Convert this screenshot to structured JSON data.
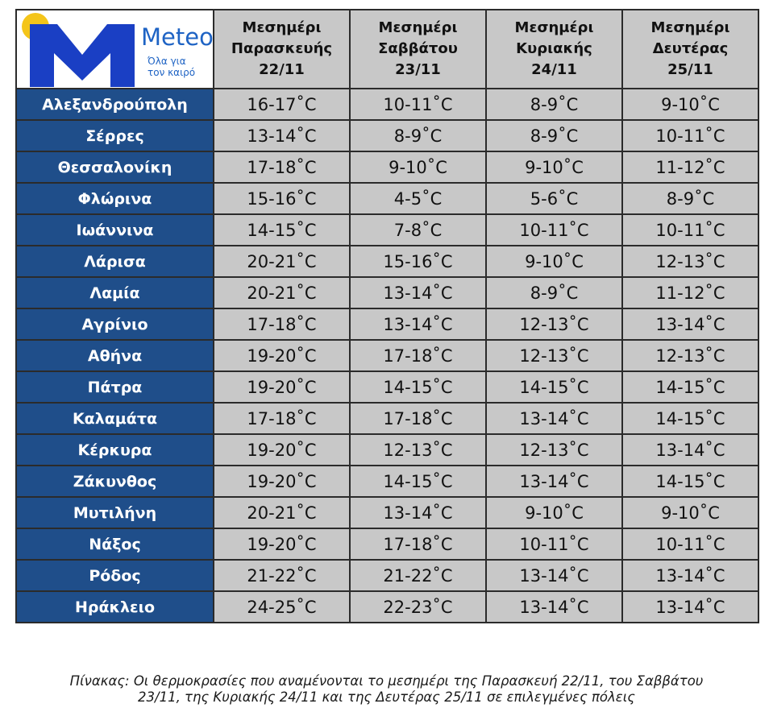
{
  "logo": {
    "brand": "Meteo",
    "tagline_line1": "Όλα για",
    "tagline_line2": "τον καιρό",
    "colors": {
      "sun": "#f4c51a",
      "mark": "#1a3fc4",
      "text": "#1e63c4"
    }
  },
  "table": {
    "headers": [
      {
        "line1": "Μεσημέρι",
        "line2": "Παρασκευής",
        "line3": "22/11"
      },
      {
        "line1": "Μεσημέρι",
        "line2": "Σαββάτου",
        "line3": "23/11"
      },
      {
        "line1": "Μεσημέρι",
        "line2": "Κυριακής",
        "line3": "24/11"
      },
      {
        "line1": "Μεσημέρι",
        "line2": "Δευτέρας",
        "line3": "25/11"
      }
    ],
    "rows": [
      {
        "city": "Αλεξανδρούπολη",
        "values": [
          "16-17˚C",
          "10-11˚C",
          "8-9˚C",
          "9-10˚C"
        ]
      },
      {
        "city": "Σέρρες",
        "values": [
          "13-14˚C",
          "8-9˚C",
          "8-9˚C",
          "10-11˚C"
        ]
      },
      {
        "city": "Θεσσαλονίκη",
        "values": [
          "17-18˚C",
          "9-10˚C",
          "9-10˚C",
          "11-12˚C"
        ]
      },
      {
        "city": "Φλώρινα",
        "values": [
          "15-16˚C",
          "4-5˚C",
          "5-6˚C",
          "8-9˚C"
        ]
      },
      {
        "city": "Ιωάννινα",
        "values": [
          "14-15˚C",
          "7-8˚C",
          "10-11˚C",
          "10-11˚C"
        ]
      },
      {
        "city": "Λάρισα",
        "values": [
          "20-21˚C",
          "15-16˚C",
          "9-10˚C",
          "12-13˚C"
        ]
      },
      {
        "city": "Λαμία",
        "values": [
          "20-21˚C",
          "13-14˚C",
          "8-9˚C",
          "11-12˚C"
        ]
      },
      {
        "city": "Αγρίνιο",
        "values": [
          "17-18˚C",
          "13-14˚C",
          "12-13˚C",
          "13-14˚C"
        ]
      },
      {
        "city": "Αθήνα",
        "values": [
          "19-20˚C",
          "17-18˚C",
          "12-13˚C",
          "12-13˚C"
        ]
      },
      {
        "city": "Πάτρα",
        "values": [
          "19-20˚C",
          "14-15˚C",
          "14-15˚C",
          "14-15˚C"
        ]
      },
      {
        "city": "Καλαμάτα",
        "values": [
          "17-18˚C",
          "17-18˚C",
          "13-14˚C",
          "14-15˚C"
        ]
      },
      {
        "city": "Κέρκυρα",
        "values": [
          "19-20˚C",
          "12-13˚C",
          "12-13˚C",
          "13-14˚C"
        ]
      },
      {
        "city": "Ζάκυνθος",
        "values": [
          "19-20˚C",
          "14-15˚C",
          "13-14˚C",
          "14-15˚C"
        ]
      },
      {
        "city": "Μυτιλήνη",
        "values": [
          "20-21˚C",
          "13-14˚C",
          "9-10˚C",
          "9-10˚C"
        ]
      },
      {
        "city": "Νάξος",
        "values": [
          "19-20˚C",
          "17-18˚C",
          "10-11˚C",
          "10-11˚C"
        ]
      },
      {
        "city": "Ρόδος",
        "values": [
          "21-22˚C",
          "21-22˚C",
          "13-14˚C",
          "13-14˚C"
        ]
      },
      {
        "city": "Ηράκλειο",
        "values": [
          "24-25˚C",
          "22-23˚C",
          "13-14˚C",
          "13-14˚C"
        ]
      }
    ]
  },
  "caption": {
    "line1": "Πίνακας: Οι θερμοκρασίες που αναμένονται το μεσημέρι της Παρασκευή 22/11, του Σαββάτου",
    "line2": "23/11, της Κυριακής 24/11 και της Δευτέρας 25/11 σε επιλεγμένες πόλεις"
  },
  "colors": {
    "city_cell_bg": "#1f4e8a",
    "value_cell_bg": "#c8c8c8",
    "border": "#2b2b2b"
  }
}
